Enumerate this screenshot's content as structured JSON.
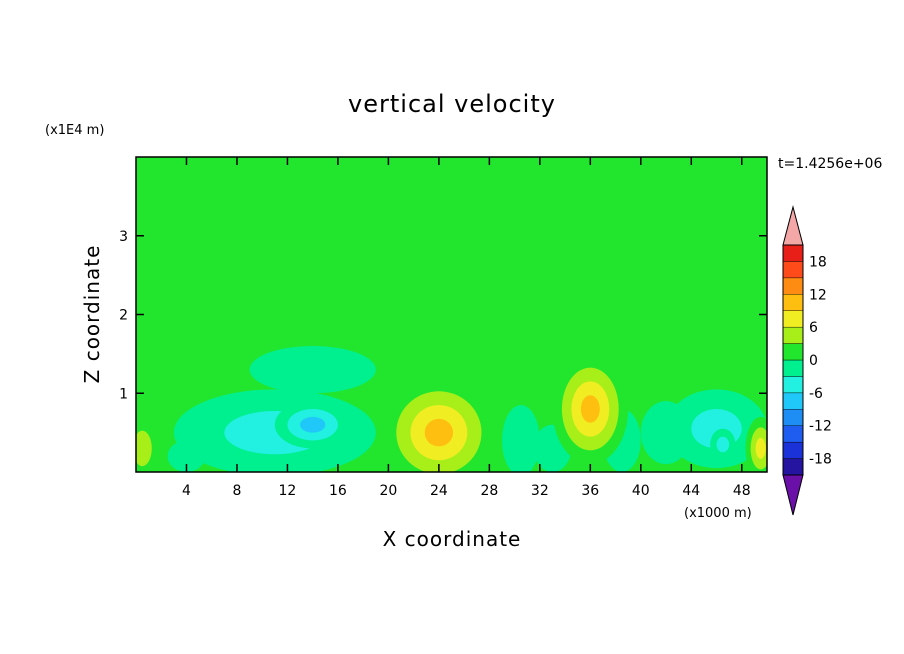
{
  "chart_data": {
    "type": "heatmap",
    "title": "vertical velocity",
    "xlabel": "X coordinate",
    "ylabel": "Z coordinate",
    "x_units": "(x1000 m)",
    "y_units": "(x1E4 m)",
    "time_label": "t=1.4256e+06",
    "xlim": [
      0,
      50
    ],
    "ylim": [
      0,
      4
    ],
    "x_ticks": [
      "4",
      "8",
      "12",
      "16",
      "20",
      "24",
      "28",
      "32",
      "36",
      "40",
      "44",
      "48"
    ],
    "y_ticks": [
      "1",
      "2",
      "3"
    ],
    "x_tick_values": [
      4,
      8,
      12,
      16,
      20,
      24,
      28,
      32,
      36,
      40,
      44,
      48
    ],
    "y_tick_values": [
      1,
      2,
      3
    ],
    "colorbar": {
      "ticks": [
        "18",
        "12",
        "6",
        "0",
        "-6",
        "-12",
        "-18"
      ],
      "tick_values": [
        18,
        12,
        6,
        0,
        -6,
        -12,
        -18
      ],
      "range": [
        -21,
        21
      ],
      "levels": [
        -21,
        -18,
        -15,
        -12,
        -9,
        -6,
        -3,
        0,
        3,
        6,
        9,
        12,
        15,
        18,
        21
      ],
      "colors": [
        "#6a0fa8",
        "#2414a0",
        "#1a32d8",
        "#1f5cf0",
        "#1e8ef5",
        "#1fc8f8",
        "#22f0e0",
        "#00ef8f",
        "#22e62e",
        "#a8ef1a",
        "#f0ee22",
        "#ffbf10",
        "#ff8c12",
        "#ff4a1a",
        "#e81e18",
        "#f3a7a7"
      ]
    },
    "background_level": 0,
    "features": [
      {
        "x": 11,
        "z": 0.5,
        "rx": 8,
        "rz": 0.55,
        "w": -5
      },
      {
        "x": 14,
        "z": 0.6,
        "rx": 3,
        "rz": 0.3,
        "w": -7
      },
      {
        "x": 11,
        "z": 0.45,
        "rx": 2,
        "rz": 0.2,
        "w": -4
      },
      {
        "x": 6.5,
        "z": 0.5,
        "rx": 2,
        "rz": 0.2,
        "w": -3
      },
      {
        "x": 4,
        "z": 0.2,
        "rx": 1.5,
        "rz": 0.2,
        "w": -2
      },
      {
        "x": 14,
        "z": 1.3,
        "rx": 5,
        "rz": 0.3,
        "w": -2.5
      },
      {
        "x": 24,
        "z": 0.5,
        "rx": 4.5,
        "rz": 0.7,
        "w": 10
      },
      {
        "x": 24,
        "z": 0.35,
        "rx": 1.5,
        "rz": 0.2,
        "w": 6
      },
      {
        "x": 27.5,
        "z": 0.6,
        "rx": 1.5,
        "rz": 0.35,
        "w": 4
      },
      {
        "x": 26,
        "z": 1.2,
        "rx": 6,
        "rz": 0.5,
        "w": 3
      },
      {
        "x": 36,
        "z": 0.8,
        "rx": 3,
        "rz": 0.7,
        "w": 11
      },
      {
        "x": 36,
        "z": 0.8,
        "rx": 1.1,
        "rz": 0.25,
        "w": 6
      },
      {
        "x": 33,
        "z": 0.3,
        "rx": 1.5,
        "rz": 0.3,
        "w": -3
      },
      {
        "x": 30.5,
        "z": 0.4,
        "rx": 1.5,
        "rz": 0.45,
        "w": -2
      },
      {
        "x": 38.5,
        "z": 0.4,
        "rx": 1.5,
        "rz": 0.4,
        "w": -2
      },
      {
        "x": 46,
        "z": 0.55,
        "rx": 4,
        "rz": 0.5,
        "w": -5
      },
      {
        "x": 46.5,
        "z": 0.35,
        "rx": 1,
        "rz": 0.2,
        "w": -5
      },
      {
        "x": 42,
        "z": 0.5,
        "rx": 2,
        "rz": 0.4,
        "w": -3
      },
      {
        "x": 49.5,
        "z": 0.3,
        "rx": 1.2,
        "rz": 0.4,
        "w": 8
      },
      {
        "x": 0.5,
        "z": 0.3,
        "rx": 1.5,
        "rz": 0.45,
        "w": 4
      },
      {
        "x": 27,
        "z": 2.2,
        "rx": 10,
        "rz": 0.55,
        "w": 2
      },
      {
        "x": 25,
        "z": 3.05,
        "rx": 9,
        "rz": 0.1,
        "w": 2
      },
      {
        "x": 45,
        "z": 3.1,
        "rx": 5,
        "rz": 0.1,
        "w": 2
      },
      {
        "x": 10,
        "z": 2.45,
        "rx": 8,
        "rz": 0.25,
        "w": 2
      },
      {
        "x": 46,
        "z": 2.5,
        "rx": 5,
        "rz": 0.25,
        "w": 1.2
      },
      {
        "x": 1,
        "z": 1.2,
        "rx": 1.5,
        "rz": 0.6,
        "w": 2
      }
    ]
  }
}
